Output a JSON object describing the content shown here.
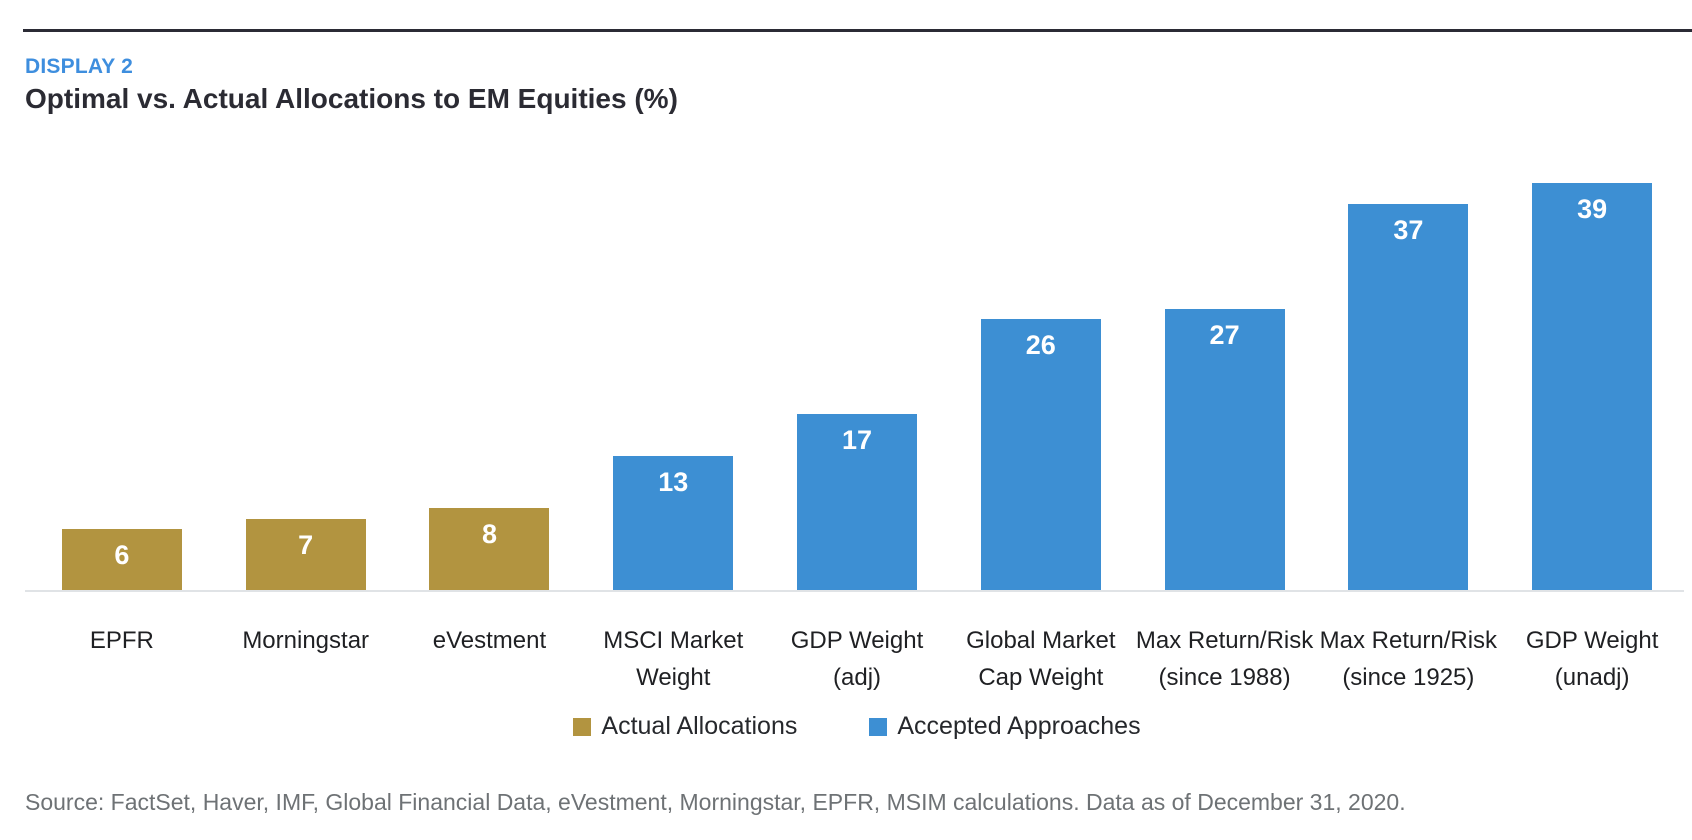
{
  "header": {
    "eyebrow": "DISPLAY 2",
    "title": "Optimal vs. Actual Allocations to EM Equities (%)"
  },
  "colors": {
    "eyebrow_blue": "#3e8ede",
    "title_dark": "#2b2b33",
    "top_rule": "#2b2b35",
    "actual_gold": "#b29440",
    "accepted_blue": "#3d8fd3",
    "baseline_gray": "#e0e3e6",
    "source_gray": "#6e7275",
    "value_label": "#ffffff"
  },
  "chart_data": {
    "type": "bar",
    "title": "Optimal vs. Actual Allocations to EM Equities (%)",
    "categories": [
      "EPFR",
      "Morningstar",
      "eVestment",
      "MSCI Market\nWeight",
      "GDP Weight (adj)",
      "Global Market\nCap Weight",
      "Max Return/Risk\n(since 1988)",
      "Max Return/Risk\n(since 1925)",
      "GDP Weight\n(unadj)"
    ],
    "values": [
      6,
      7,
      8,
      13,
      17,
      26,
      27,
      37,
      39
    ],
    "groups": [
      "actual",
      "actual",
      "actual",
      "accepted",
      "accepted",
      "accepted",
      "accepted",
      "accepted",
      "accepted"
    ],
    "series_colors": {
      "actual": "#b29440",
      "accepted": "#3d8fd3"
    },
    "value_labels_shown": true,
    "xlabel": "",
    "ylabel": "",
    "ylim": [
      0,
      40
    ],
    "grid": "off",
    "y_axis_shown": false,
    "legend_position": "bottom"
  },
  "legend": {
    "items": [
      {
        "label": "Actual Allocations",
        "group": "actual",
        "color": "#b29440"
      },
      {
        "label": "Accepted Approaches",
        "group": "accepted",
        "color": "#3d8fd3"
      }
    ]
  },
  "source": {
    "text": "Source: FactSet, Haver, IMF, Global Financial Data, eVestment, Morningstar, EPFR, MSIM calculations. Data as of December 31, 2020."
  }
}
